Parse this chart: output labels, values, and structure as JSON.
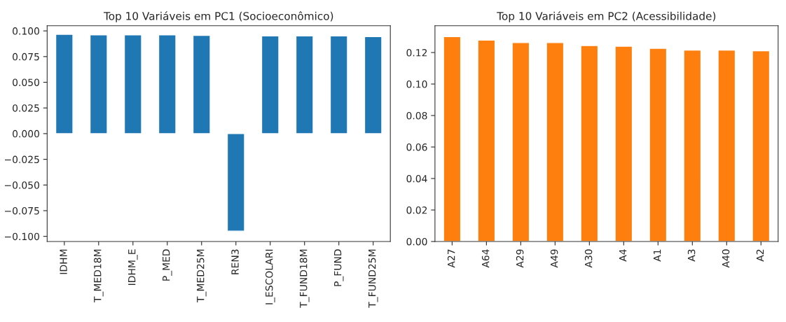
{
  "chart_data": [
    {
      "type": "bar",
      "title": "Top 10 Variáveis em PC1 (Socioeconômico)",
      "categories": [
        "IDHM",
        "T_MED18M",
        "IDHM_E",
        "P_MED",
        "T_MED25M",
        "REN3",
        "I_ESCOLARI",
        "T_FUND18M",
        "P_FUND",
        "T_FUND25M"
      ],
      "values": [
        0.0967,
        0.0962,
        0.0962,
        0.0962,
        0.0956,
        -0.0949,
        0.0951,
        0.0951,
        0.0951,
        0.0945
      ],
      "color": "#1f77b4",
      "ylim": [
        -0.105,
        0.105
      ],
      "yticks": [
        {
          "value": -0.1,
          "label": "−0.100"
        },
        {
          "value": -0.075,
          "label": "−0.075"
        },
        {
          "value": -0.05,
          "label": "−0.050"
        },
        {
          "value": -0.025,
          "label": "−0.025"
        },
        {
          "value": 0,
          "label": "0.000"
        },
        {
          "value": 0.025,
          "label": "0.025"
        },
        {
          "value": 0.05,
          "label": "0.050"
        },
        {
          "value": 0.075,
          "label": "0.075"
        },
        {
          "value": 0.1,
          "label": "0.100"
        }
      ],
      "grid": false
    },
    {
      "type": "bar",
      "title": "Top 10 Variáveis em PC2 (Acessibilidade)",
      "categories": [
        "A27",
        "A64",
        "A29",
        "A49",
        "A30",
        "A4",
        "A1",
        "A3",
        "A40",
        "A2"
      ],
      "values": [
        0.1301,
        0.1279,
        0.1263,
        0.1263,
        0.1244,
        0.124,
        0.1227,
        0.1216,
        0.1216,
        0.1211
      ],
      "color": "#ff7f0e",
      "ylim": [
        0,
        0.137
      ],
      "yticks": [
        {
          "value": 0,
          "label": "0.00"
        },
        {
          "value": 0.02,
          "label": "0.02"
        },
        {
          "value": 0.04,
          "label": "0.04"
        },
        {
          "value": 0.06,
          "label": "0.06"
        },
        {
          "value": 0.08,
          "label": "0.08"
        },
        {
          "value": 0.1,
          "label": "0.10"
        },
        {
          "value": 0.12,
          "label": "0.12"
        }
      ],
      "grid": false
    }
  ]
}
